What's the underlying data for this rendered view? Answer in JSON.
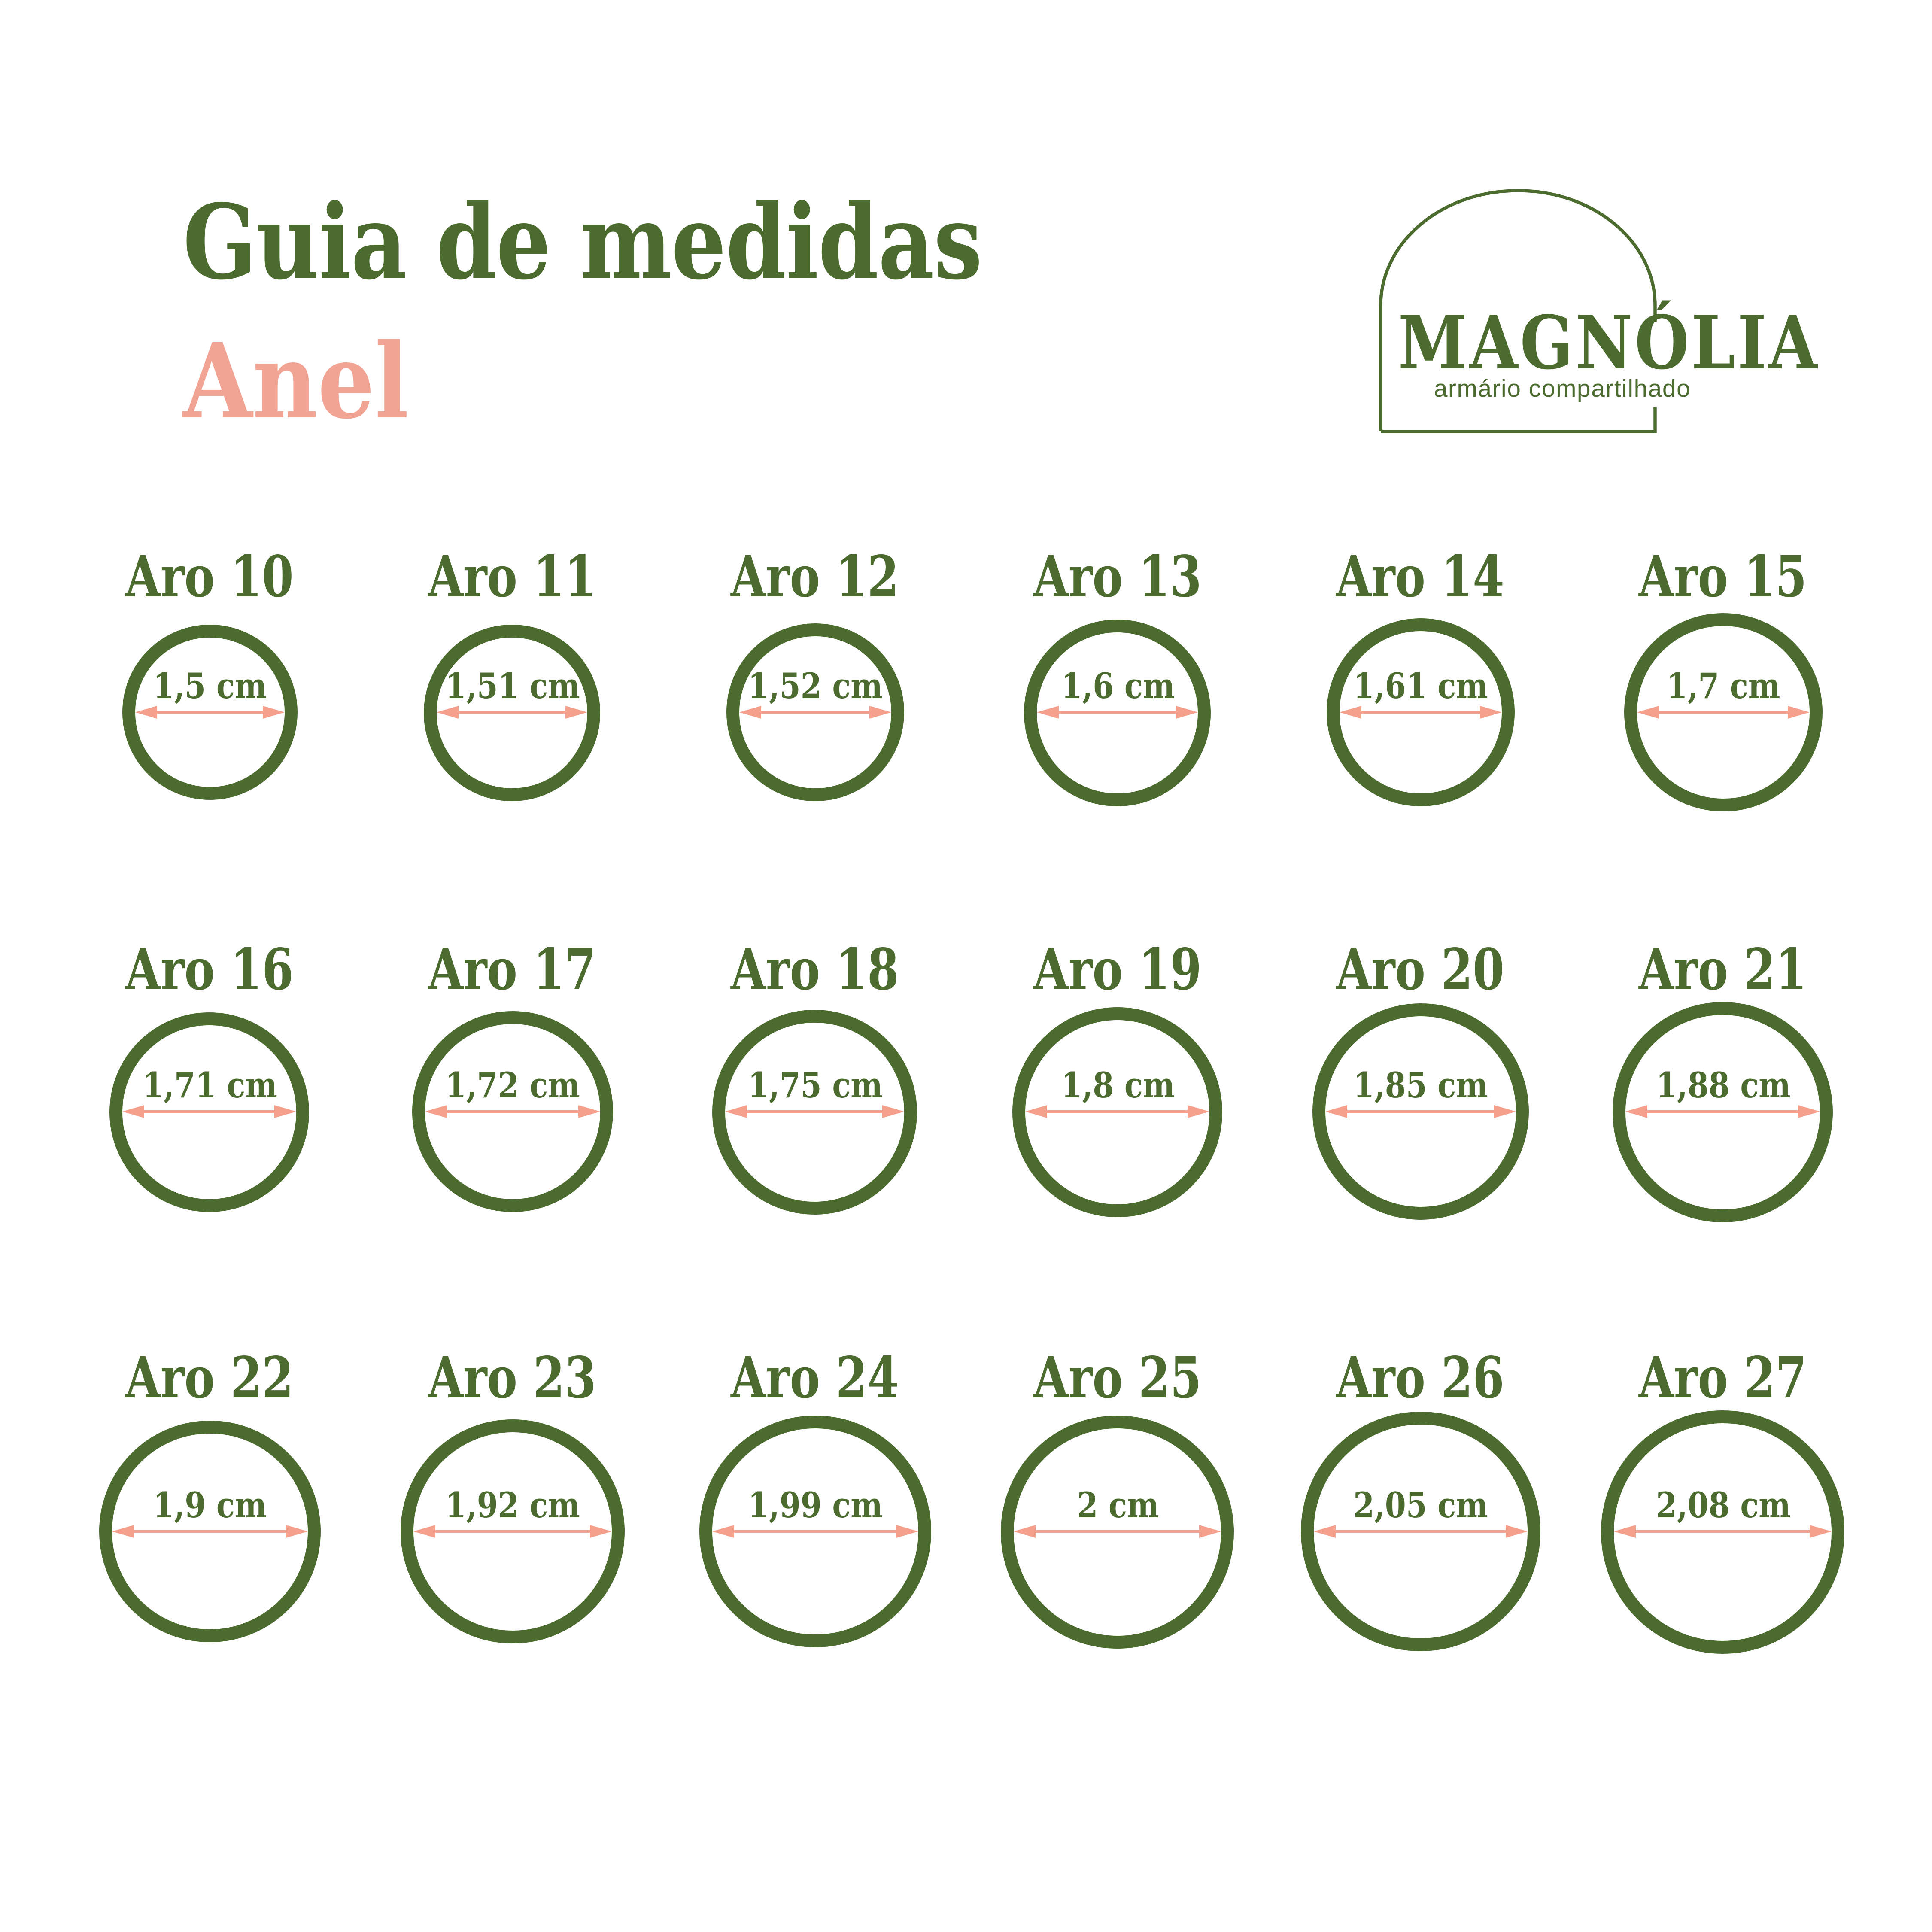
{
  "header": {
    "title": "Guia de medidas",
    "subtitle": "Anel"
  },
  "logo": {
    "brand": "MAGNÓLIA",
    "tagline": "armário compartilhado"
  },
  "colors": {
    "green": "#4c6b2f",
    "pink_text": "#f2a494",
    "pink_arrow": "#f4a08c"
  },
  "unit": "cm",
  "rings": [
    {
      "label": "Aro 10",
      "size_label": "1,5 cm",
      "diameter_cm": 1.5
    },
    {
      "label": "Aro 11",
      "size_label": "1,51 cm",
      "diameter_cm": 1.51
    },
    {
      "label": "Aro 12",
      "size_label": "1,52 cm",
      "diameter_cm": 1.52
    },
    {
      "label": "Aro 13",
      "size_label": "1,6 cm",
      "diameter_cm": 1.6
    },
    {
      "label": "Aro 14",
      "size_label": "1,61 cm",
      "diameter_cm": 1.61
    },
    {
      "label": "Aro 15",
      "size_label": "1,7 cm",
      "diameter_cm": 1.7
    },
    {
      "label": "Aro 16",
      "size_label": "1,71 cm",
      "diameter_cm": 1.71
    },
    {
      "label": "Aro 17",
      "size_label": "1,72 cm",
      "diameter_cm": 1.72
    },
    {
      "label": "Aro 18",
      "size_label": "1,75 cm",
      "diameter_cm": 1.75
    },
    {
      "label": "Aro 19",
      "size_label": "1,8 cm",
      "diameter_cm": 1.8
    },
    {
      "label": "Aro 20",
      "size_label": "1,85 cm",
      "diameter_cm": 1.85
    },
    {
      "label": "Aro 21",
      "size_label": "1,88 cm",
      "diameter_cm": 1.88
    },
    {
      "label": "Aro 22",
      "size_label": "1,9 cm",
      "diameter_cm": 1.9
    },
    {
      "label": "Aro 23",
      "size_label": "1,92 cm",
      "diameter_cm": 1.92
    },
    {
      "label": "Aro 24",
      "size_label": "1,99 cm",
      "diameter_cm": 1.99
    },
    {
      "label": "Aro 25",
      "size_label": "2 cm",
      "diameter_cm": 2.0
    },
    {
      "label": "Aro 26",
      "size_label": "2,05 cm",
      "diameter_cm": 2.05
    },
    {
      "label": "Aro 27",
      "size_label": "2,08 cm",
      "diameter_cm": 2.08
    }
  ]
}
